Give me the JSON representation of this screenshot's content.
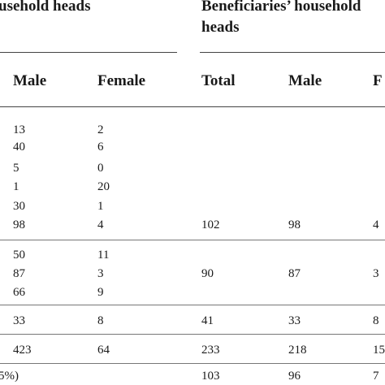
{
  "group_headers": {
    "left": "usehold heads",
    "right_line1": "Beneficiaries’ household",
    "right_line2": "heads"
  },
  "column_headers": {
    "male_left": "Male",
    "female_left": "Female",
    "total_right": "Total",
    "male_right": "Male",
    "female_right_partial": "F"
  },
  "rows": [
    {
      "male": "13",
      "female": "2",
      "total": "",
      "male2": "",
      "female2": ""
    },
    {
      "male": "40",
      "female": "6",
      "total": "",
      "male2": "",
      "female2": ""
    },
    {
      "male": "5",
      "female": "0",
      "total": "",
      "male2": "",
      "female2": ""
    },
    {
      "male": "1",
      "female": "20",
      "total": "",
      "male2": "",
      "female2": ""
    },
    {
      "male": "30",
      "female": "1",
      "total": "",
      "male2": "",
      "female2": ""
    },
    {
      "male": "98",
      "female": "4",
      "total": "102",
      "male2": "98",
      "female2": "4"
    },
    {
      "male": "50",
      "female": "11",
      "total": "",
      "male2": "",
      "female2": ""
    },
    {
      "male": "87",
      "female": "3",
      "total": "90",
      "male2": "87",
      "female2": "3"
    },
    {
      "male": "66",
      "female": "9",
      "total": "",
      "male2": "",
      "female2": ""
    },
    {
      "male": "33",
      "female": "8",
      "total": "41",
      "male2": "33",
      "female2": "8"
    },
    {
      "male": "423",
      "female": "64",
      "total": "233",
      "male2": "218",
      "female2": "15"
    },
    {
      "label_partial": "5%)",
      "male": "",
      "female": "",
      "total": "103",
      "male2": "96",
      "female2": "7"
    }
  ]
}
